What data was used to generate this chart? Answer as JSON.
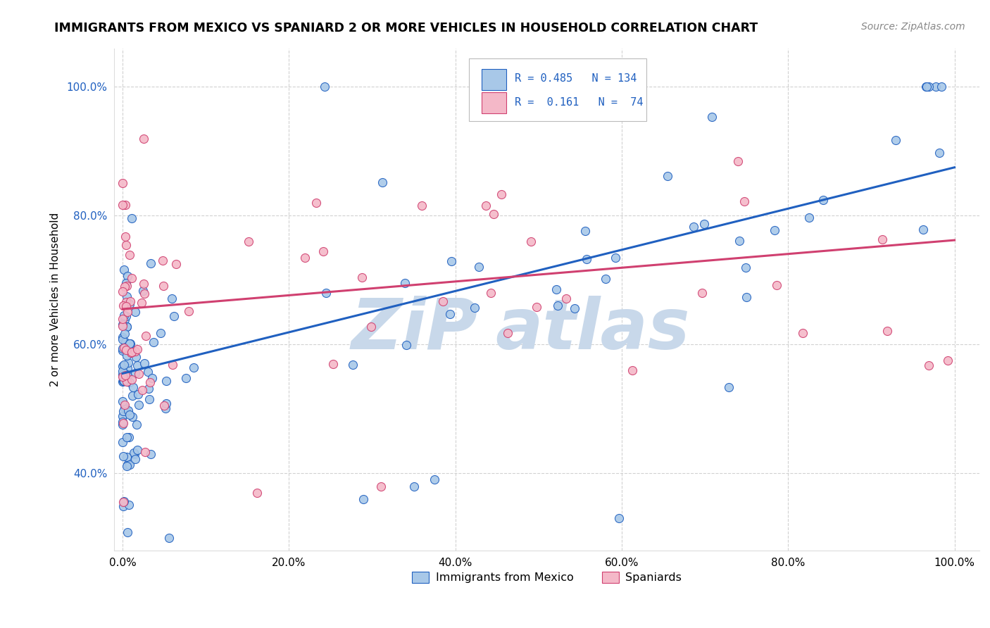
{
  "title": "IMMIGRANTS FROM MEXICO VS SPANIARD 2 OR MORE VEHICLES IN HOUSEHOLD CORRELATION CHART",
  "source": "Source: ZipAtlas.com",
  "ylabel_label": "2 or more Vehicles in Household",
  "legend_label1": "Immigrants from Mexico",
  "legend_label2": "Spaniards",
  "R1": "0.485",
  "N1": "134",
  "R2": "0.161",
  "N2": "74",
  "color_blue": "#a8c8e8",
  "color_pink": "#f4b8c8",
  "line_blue": "#2060c0",
  "line_pink": "#d04070",
  "watermark_color": "#c8d8ea",
  "ylim_low": 0.28,
  "ylim_high": 1.06,
  "xlim_low": -0.01,
  "xlim_high": 1.03,
  "ytick_vals": [
    0.4,
    0.6,
    0.8,
    1.0
  ],
  "ytick_labels": [
    "40.0%",
    "60.0%",
    "80.0%",
    "100.0%"
  ],
  "xtick_vals": [
    0.0,
    0.2,
    0.4,
    0.6,
    0.8,
    1.0
  ],
  "xtick_labels": [
    "0.0%",
    "20.0%",
    "40.0%",
    "60.0%",
    "80.0%",
    "100.0%"
  ],
  "blue_line_x0": 0.0,
  "blue_line_y0": 0.555,
  "blue_line_x1": 1.0,
  "blue_line_y1": 0.875,
  "pink_line_x0": 0.0,
  "pink_line_y0": 0.655,
  "pink_line_x1": 1.0,
  "pink_line_y1": 0.762
}
